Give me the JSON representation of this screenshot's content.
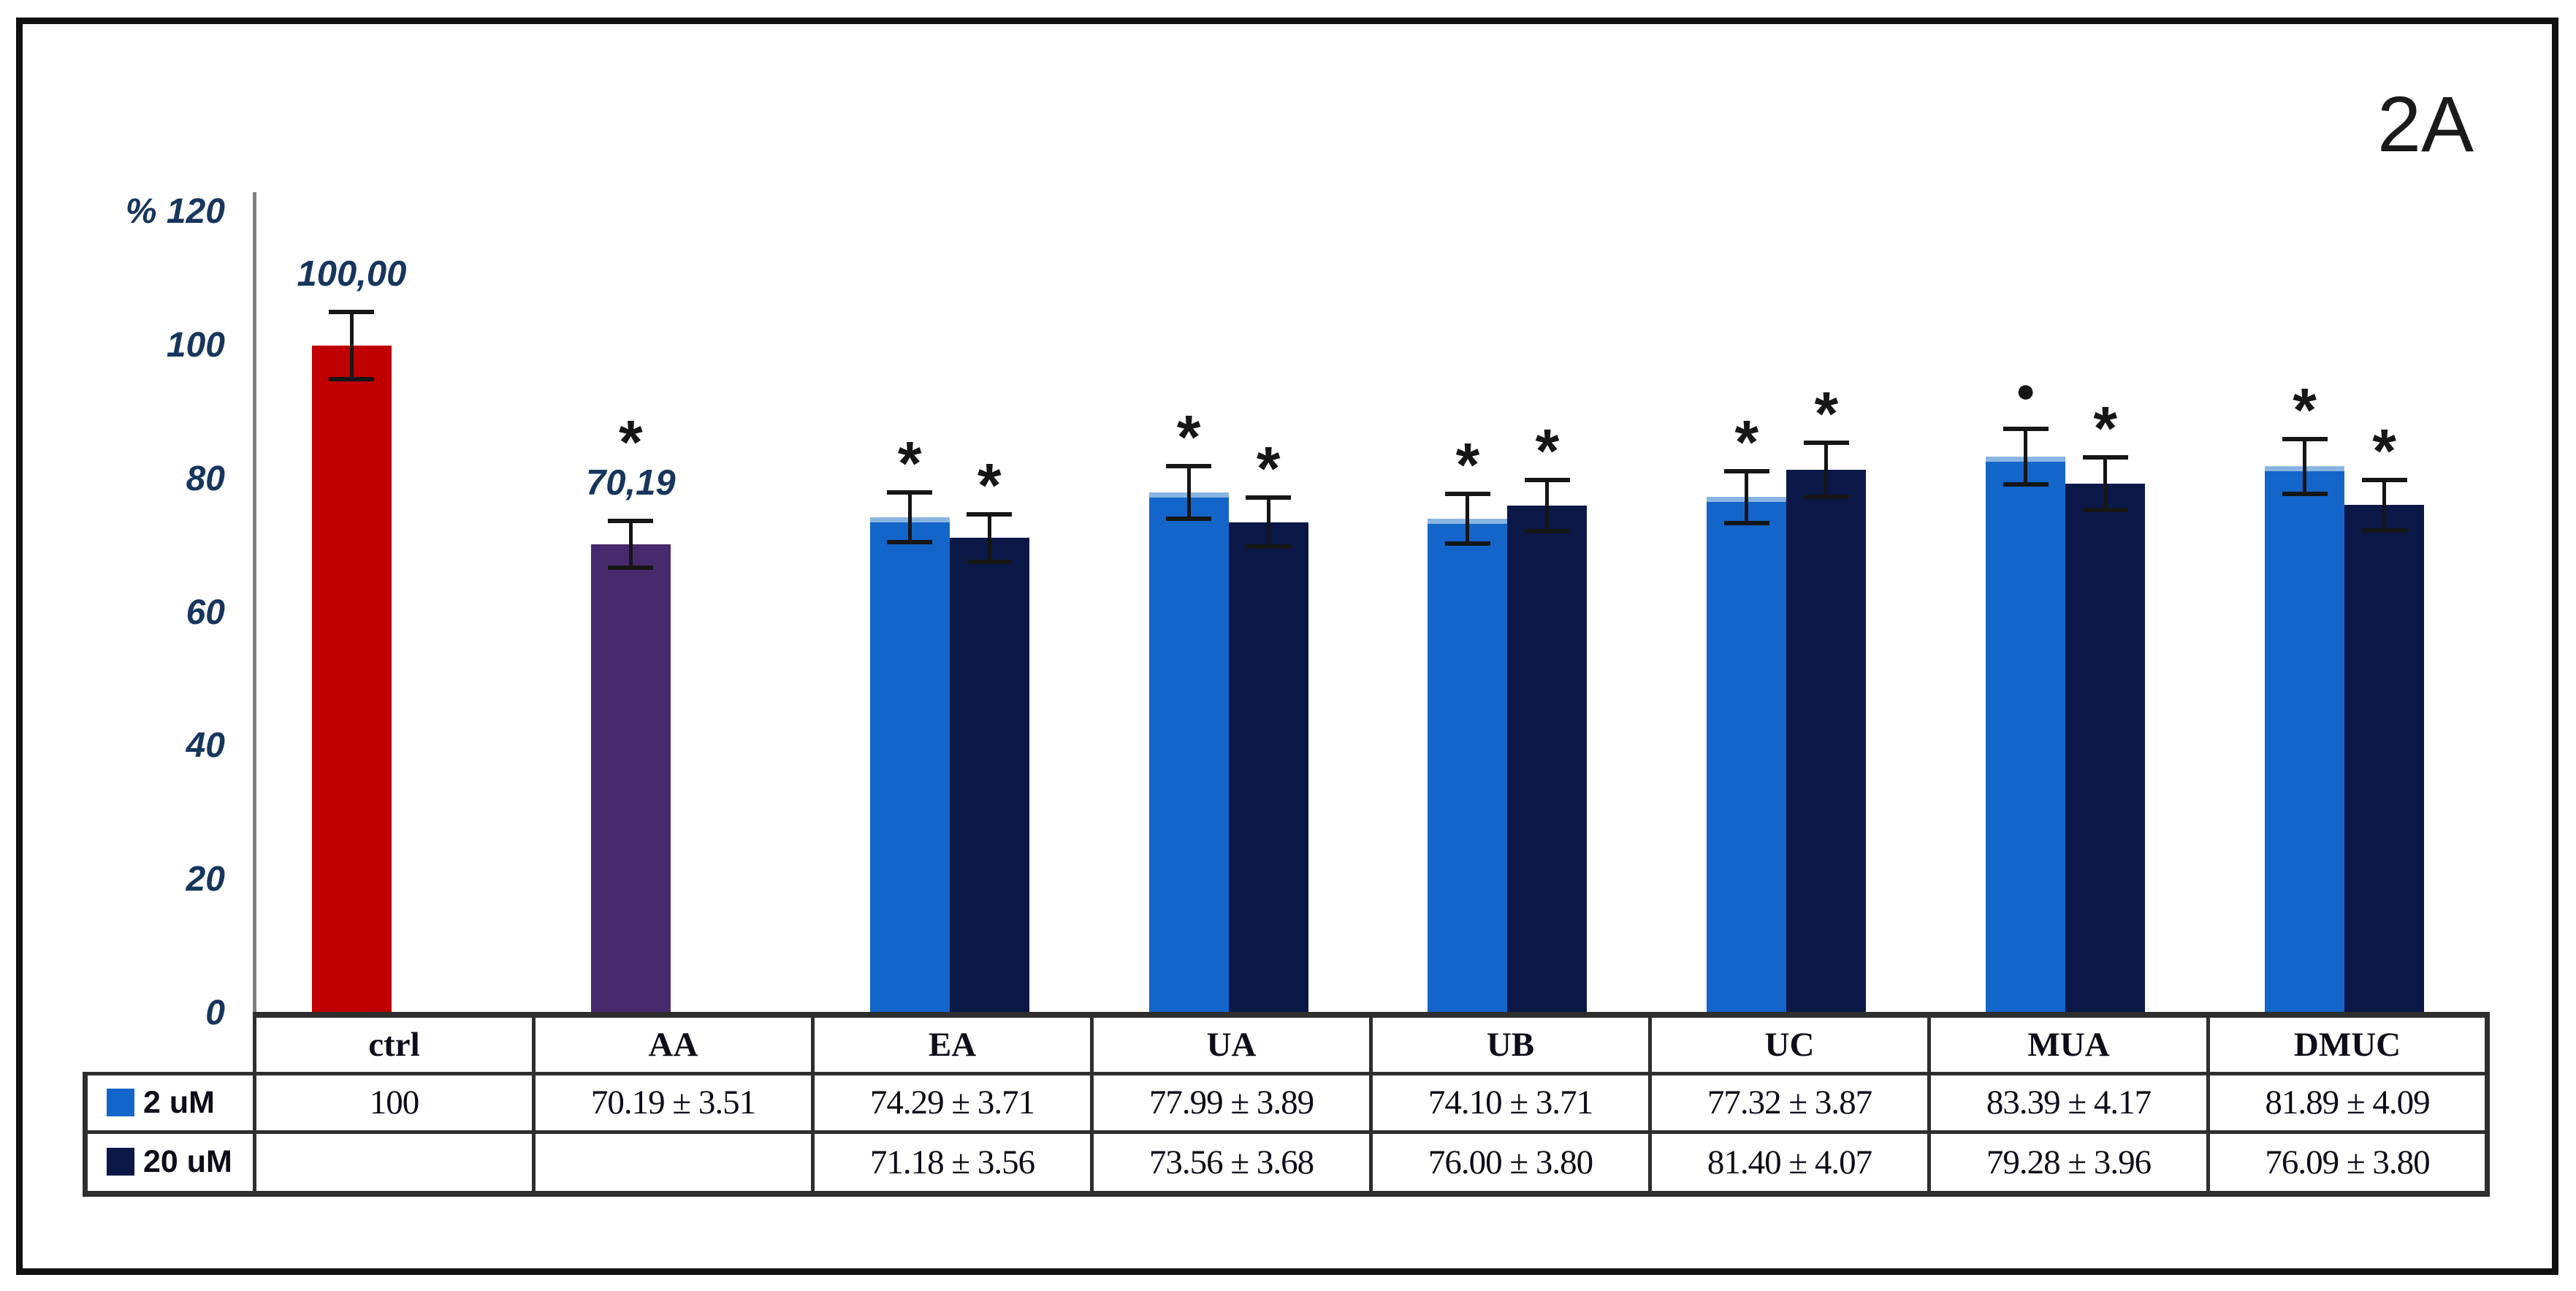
{
  "figure_label": "2A",
  "colors": {
    "ctrl_bar": "#C00000",
    "aa_bar": "#472A6E",
    "series_2um": "#1465C9",
    "series_20um": "#0A1747",
    "axis_text": "#17365D",
    "error_bar": "#161616"
  },
  "chart_data": {
    "type": "bar",
    "title": "",
    "unit": "%",
    "ylim": [
      0,
      120
    ],
    "yticks": [
      120,
      100,
      80,
      60,
      40,
      20,
      0
    ],
    "grid": false,
    "legend_position": "table-left",
    "categories": [
      "ctrl",
      "AA",
      "EA",
      "UA",
      "UB",
      "UC",
      "MUA",
      "DMUC"
    ],
    "series": [
      {
        "name": "2 uM",
        "values": [
          100,
          70.19,
          74.29,
          77.99,
          74.1,
          77.32,
          83.39,
          81.89
        ],
        "errors": [
          5.0,
          3.51,
          3.71,
          3.89,
          3.71,
          3.87,
          4.17,
          4.09
        ],
        "markers": [
          "",
          "*",
          "*",
          "*",
          "*",
          "*",
          "●",
          "*"
        ]
      },
      {
        "name": "20 uM",
        "values": [
          null,
          null,
          71.18,
          73.56,
          76.0,
          81.4,
          79.28,
          76.09
        ],
        "errors": [
          null,
          null,
          3.56,
          3.68,
          3.8,
          4.07,
          3.96,
          3.8
        ],
        "markers": [
          "",
          "",
          "*",
          "*",
          "*",
          "*",
          "*",
          "*"
        ]
      }
    ],
    "bar_labels": [
      {
        "category": "ctrl",
        "text": "100,00"
      },
      {
        "category": "AA",
        "text": "70,19"
      }
    ],
    "bar_colors_override": {
      "ctrl": "#C00000",
      "AA": "#472A6E"
    }
  },
  "table": {
    "row_headers": [
      "2 uM",
      "20 uM"
    ],
    "columns": [
      "ctrl",
      "AA",
      "EA",
      "UA",
      "UB",
      "UC",
      "MUA",
      "DMUC"
    ],
    "rows": [
      [
        "100",
        "70.19 ± 3.51",
        "74.29 ± 3.71",
        "77.99 ± 3.89",
        "74.10 ± 3.71",
        "77.32 ± 3.87",
        "83.39 ± 4.17",
        "81.89 ± 4.09"
      ],
      [
        "",
        "",
        "71.18 ± 3.56",
        "73.56 ± 3.68",
        "76.00 ± 3.80",
        "81.40 ± 4.07",
        "79.28 ± 3.96",
        "76.09 ± 3.80"
      ]
    ]
  }
}
